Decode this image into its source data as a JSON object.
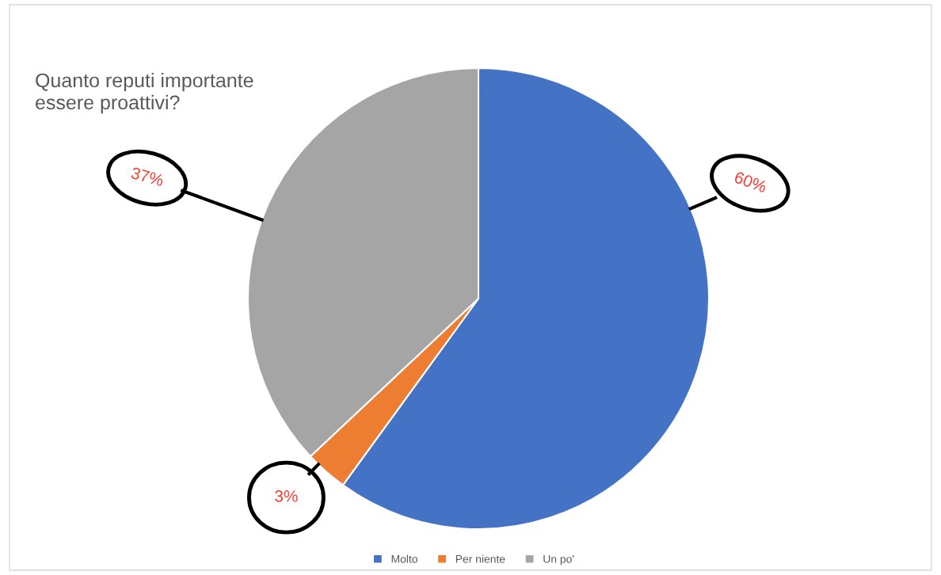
{
  "chart_data": {
    "type": "pie",
    "title": "Quanto reputi importante\nessere proattivi?",
    "categories": [
      "Molto",
      "Per niente",
      "Un po'"
    ],
    "values": [
      60,
      3,
      37
    ],
    "colors": [
      "#4472c4",
      "#ed7d31",
      "#a5a5a5"
    ],
    "value_labels": [
      "60%",
      "3%",
      "37%"
    ],
    "legend": "bottom"
  }
}
